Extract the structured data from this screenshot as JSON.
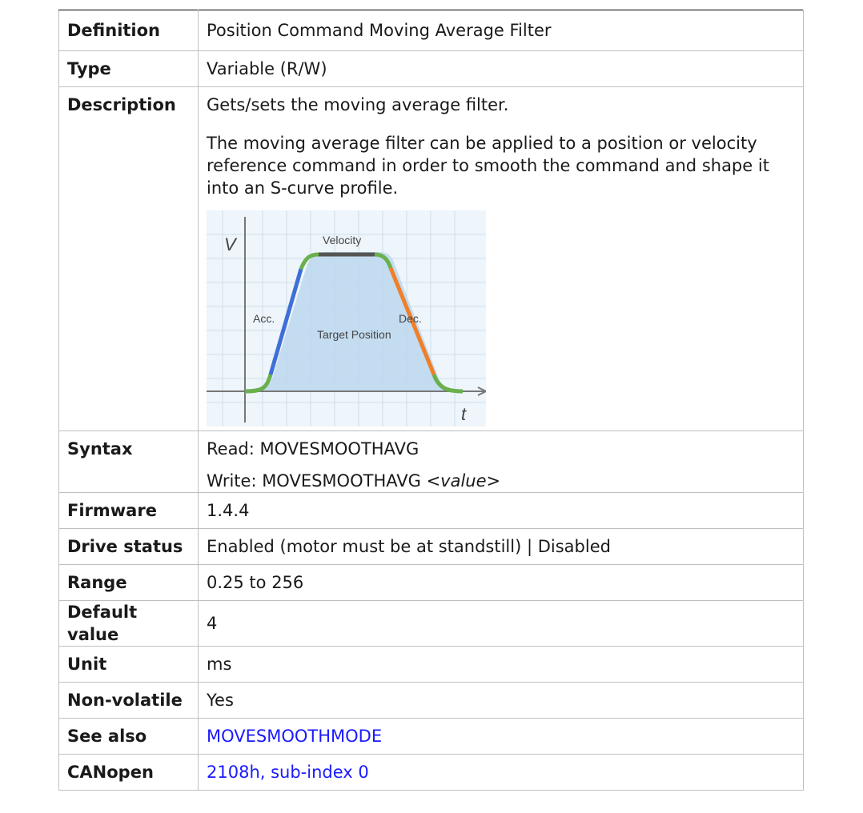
{
  "rows": [
    {
      "label": "Definition",
      "text": "Position Command Moving Average Filter"
    },
    {
      "label": "Type",
      "text": "Variable (R/W)"
    },
    {
      "label": "Description",
      "lines": [
        "Gets/sets the moving average filter.",
        "The moving average filter can be applied to a position or velocity reference command in order to smooth the command and shape it into an S-curve profile."
      ],
      "figure": {
        "velocity": "Velocity",
        "acc": "Acc.",
        "dec": "Dec.",
        "target": "Target Position",
        "v_axis": "V",
        "t_axis": "t"
      }
    },
    {
      "label": "Syntax",
      "read": "Read: MOVESMOOTHAVG",
      "write_prefix": "Write: MOVESMOOTHAVG <",
      "write_italic": "value",
      "write_suffix": ">"
    },
    {
      "label": "Firmware",
      "text": "1.4.4"
    },
    {
      "label": "Drive status",
      "text": "Enabled (motor must be at standstill) | Disabled"
    },
    {
      "label": "Range",
      "text": "0.25 to 256"
    },
    {
      "label": "Default value",
      "text": "4"
    },
    {
      "label": "Unit",
      "text": "ms"
    },
    {
      "label": "Non-volatile",
      "text": "Yes"
    },
    {
      "label": "See also",
      "link": "MOVESMOOTHMODE"
    },
    {
      "label": "CANopen",
      "link": "2108h, sub-index 0"
    }
  ]
}
